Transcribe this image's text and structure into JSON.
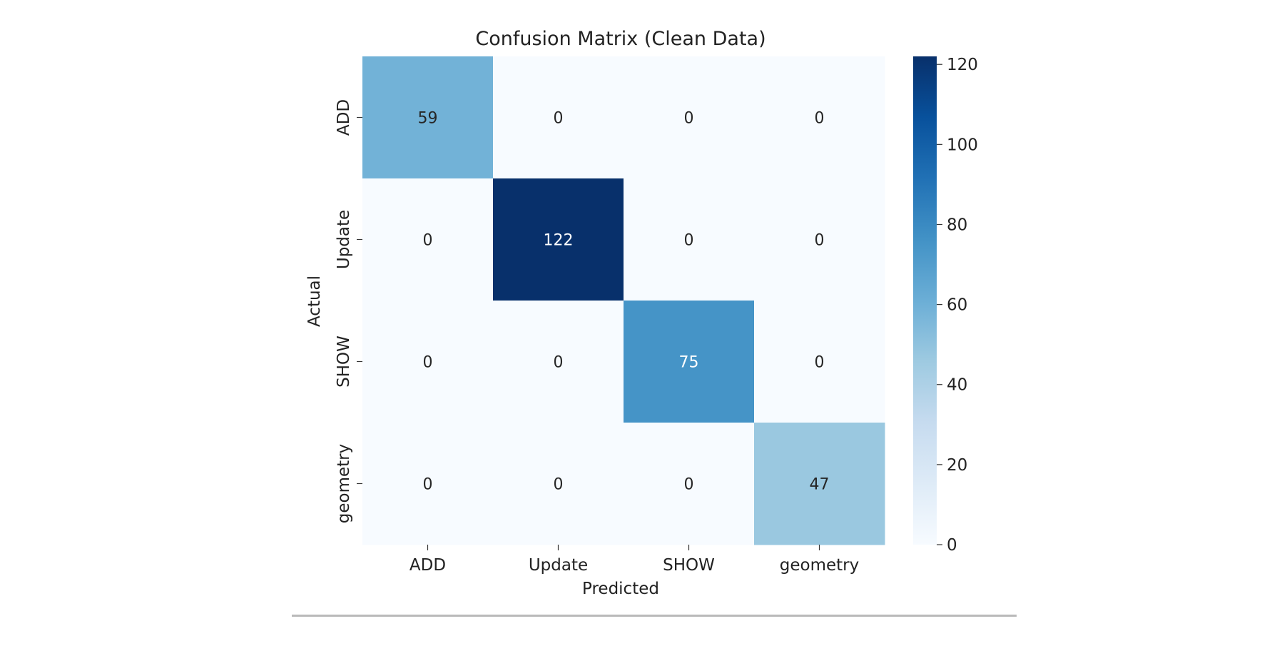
{
  "chart_data": {
    "type": "heatmap",
    "title": "Confusion Matrix (Clean Data)",
    "xlabel": "Predicted",
    "ylabel": "Actual",
    "x_categories": [
      "ADD",
      "Update",
      "SHOW",
      "geometry"
    ],
    "y_categories": [
      "ADD",
      "Update",
      "SHOW",
      "geometry"
    ],
    "values": [
      [
        59,
        0,
        0,
        0
      ],
      [
        0,
        122,
        0,
        0
      ],
      [
        0,
        0,
        75,
        0
      ],
      [
        0,
        0,
        0,
        47
      ]
    ],
    "colormap": "Blues",
    "color_range": [
      0,
      122
    ],
    "colormap_stops": [
      "#f7fbff",
      "#deebf7",
      "#c6dbef",
      "#9ecae1",
      "#6baed6",
      "#4292c6",
      "#2171b5",
      "#08519c",
      "#08306b"
    ],
    "colorbar_ticks": [
      0,
      20,
      40,
      60,
      80,
      100,
      120
    ],
    "annotation_colors": {
      "dark_text": "#262626",
      "light_text": "#ffffff"
    }
  }
}
